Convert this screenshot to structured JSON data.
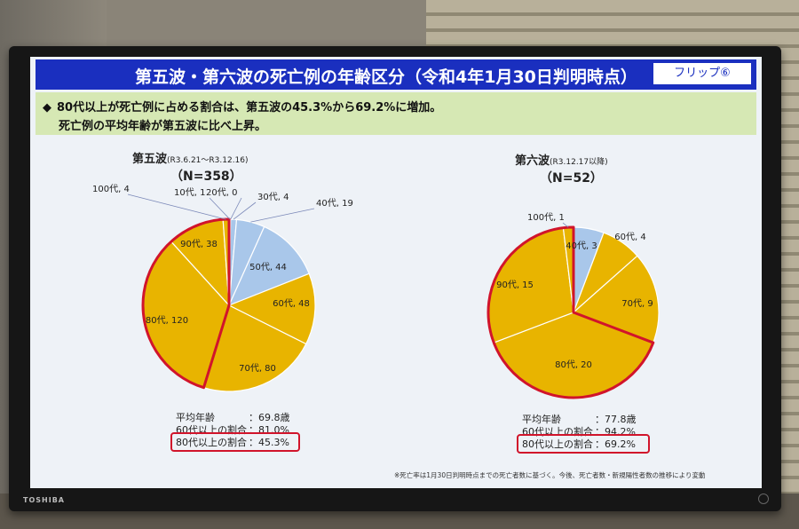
{
  "title": "第五波・第六波の死亡例の年齢区分（令和4年1月30日判明時点）",
  "flip_label": "フリップ⑥",
  "summary": {
    "line1": "80代以上が死亡例に占める割合は、第五波の45.3%から69.2%に増加。",
    "line2": "死亡例の平均年齢が第五波に比べ上昇。",
    "bullet": "◆"
  },
  "brand": "TOSHIBA",
  "footnote": "※死亡率は1月30日判明時点までの死亡者数に基づく。今後、死亡者数・新規陽性者数の推移により変動",
  "colors": {
    "young": "#a9c7ea",
    "old": "#e8b400",
    "highlight": "#d1142b",
    "title_bg": "#1a2fbf",
    "summary_bg": "#d6e8b4"
  },
  "wave5": {
    "name": "第五波",
    "period": "(R3.6.21～R3.12.16)",
    "n_label": "（N=358）",
    "stats": [
      {
        "label": "平均年齢",
        "value": "：69.8歳"
      },
      {
        "label": "60代以上の割合",
        "value": "：81.0%"
      },
      {
        "label": "80代以上の割合",
        "value": "：45.3%"
      }
    ]
  },
  "wave6": {
    "name": "第六波",
    "period": "(R3.12.17以降)",
    "n_label": "（N=52）",
    "stats": [
      {
        "label": "平均年齢",
        "value": "：77.8歳"
      },
      {
        "label": "60代以上の割合",
        "value": "：94.2%"
      },
      {
        "label": "80代以上の割合",
        "value": "：69.2%"
      }
    ]
  },
  "chart_data": [
    {
      "type": "pie",
      "title": "第五波",
      "categories": [
        "10代",
        "20代",
        "30代",
        "40代",
        "50代",
        "60代",
        "70代",
        "80代",
        "90代",
        "100代"
      ],
      "values": [
        1,
        0,
        4,
        19,
        44,
        48,
        80,
        120,
        38,
        4
      ],
      "labels": [
        "10代, 1",
        "20代, 0",
        "30代, 4",
        "40代, 19",
        "50代, 44",
        "60代, 48",
        "70代, 80",
        "80代, 120",
        "90代, 38",
        "100代, 4"
      ],
      "highlight": [
        "80代",
        "90代",
        "100代"
      ]
    },
    {
      "type": "pie",
      "title": "第六波",
      "categories": [
        "40代",
        "60代",
        "70代",
        "80代",
        "90代",
        "100代"
      ],
      "values": [
        3,
        4,
        9,
        20,
        15,
        1
      ],
      "labels": [
        "40代, 3",
        "60代, 4",
        "70代, 9",
        "80代, 20",
        "90代, 15",
        "100代, 1"
      ],
      "highlight": [
        "80代",
        "90代",
        "100代"
      ]
    }
  ]
}
